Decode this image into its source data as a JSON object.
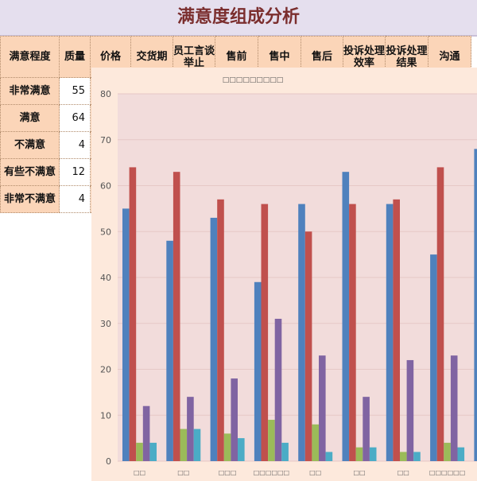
{
  "title": "满意度组成分析",
  "table": {
    "headers": [
      "满意程度",
      "质量",
      "价格",
      "交货期",
      "员工言谈举止",
      "售前",
      "售中",
      "售后",
      "投诉处理效率",
      "投诉处理结果",
      "沟通"
    ],
    "rows": [
      {
        "label": "非常满意",
        "value": "55"
      },
      {
        "label": "满意",
        "value": "64"
      },
      {
        "label": "不满意",
        "value": "4"
      },
      {
        "label": "有些不满意",
        "value": "12"
      },
      {
        "label": "非常不满意",
        "value": "4"
      }
    ]
  },
  "chart_data": {
    "type": "bar",
    "title": "□□□□□□□□□",
    "categories": [
      "□□",
      "□□",
      "□□□",
      "□□□□□□",
      "□□",
      "□□",
      "□□",
      "□□□□□□",
      ""
    ],
    "ylim": [
      0,
      80
    ],
    "yticks": [
      "0",
      "10",
      "20",
      "30",
      "40",
      "50",
      "60",
      "70",
      "80"
    ],
    "grid": true,
    "series": [
      {
        "values": [
          55,
          48,
          53,
          39,
          56,
          63,
          56,
          45,
          68
        ],
        "color": "#4f81bd"
      },
      {
        "values": [
          64,
          63,
          57,
          56,
          50,
          56,
          57,
          64,
          null
        ],
        "color": "#c0504d"
      },
      {
        "values": [
          4,
          7,
          6,
          9,
          8,
          3,
          2,
          4,
          null
        ],
        "color": "#9bbb59"
      },
      {
        "values": [
          12,
          14,
          18,
          31,
          23,
          14,
          22,
          23,
          null
        ],
        "color": "#8064a2"
      },
      {
        "values": [
          4,
          7,
          5,
          4,
          2,
          3,
          2,
          3,
          null
        ],
        "color": "#4bacc6"
      }
    ],
    "plot_background": "#f2dcdb",
    "chart_background": "#fde9dc"
  }
}
